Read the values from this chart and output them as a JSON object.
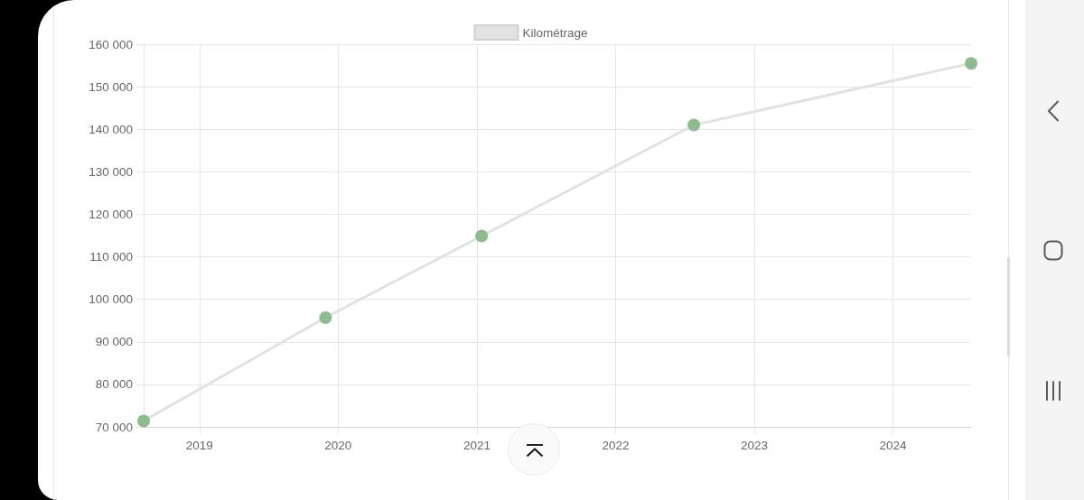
{
  "chart_data": {
    "type": "line",
    "legend": "top",
    "grid": true,
    "marker": "circle",
    "line_style": "solid",
    "x": [
      "2018-08-07",
      "2019-11-29",
      "2021-01-13",
      "2022-07-26",
      "2024-07-25"
    ],
    "xlim": [
      "2018-08-07",
      "2024-07-25"
    ],
    "xticks": [
      "2019",
      "2020",
      "2021",
      "2022",
      "2023",
      "2024"
    ],
    "ylim": [
      70000,
      160000
    ],
    "yticks": [
      {
        "value": 70000,
        "label": "70 000"
      },
      {
        "value": 80000,
        "label": "80 000"
      },
      {
        "value": 90000,
        "label": "90 000"
      },
      {
        "value": 100000,
        "label": "100 000"
      },
      {
        "value": 110000,
        "label": "110 000"
      },
      {
        "value": 120000,
        "label": "120 000"
      },
      {
        "value": 130000,
        "label": "130 000"
      },
      {
        "value": 140000,
        "label": "140 000"
      },
      {
        "value": 150000,
        "label": "150 000"
      },
      {
        "value": 160000,
        "label": "160 000"
      }
    ],
    "series": [
      {
        "name": "Kilométrage",
        "color": "#e2e2e2",
        "colors": [
          "#8fbc8f",
          "#8fbc8f",
          "#8fbc8f",
          "#8fbc8f",
          "#8fbc8f"
        ],
        "values": [
          71400,
          95700,
          114900,
          141000,
          155500
        ]
      }
    ]
  }
}
